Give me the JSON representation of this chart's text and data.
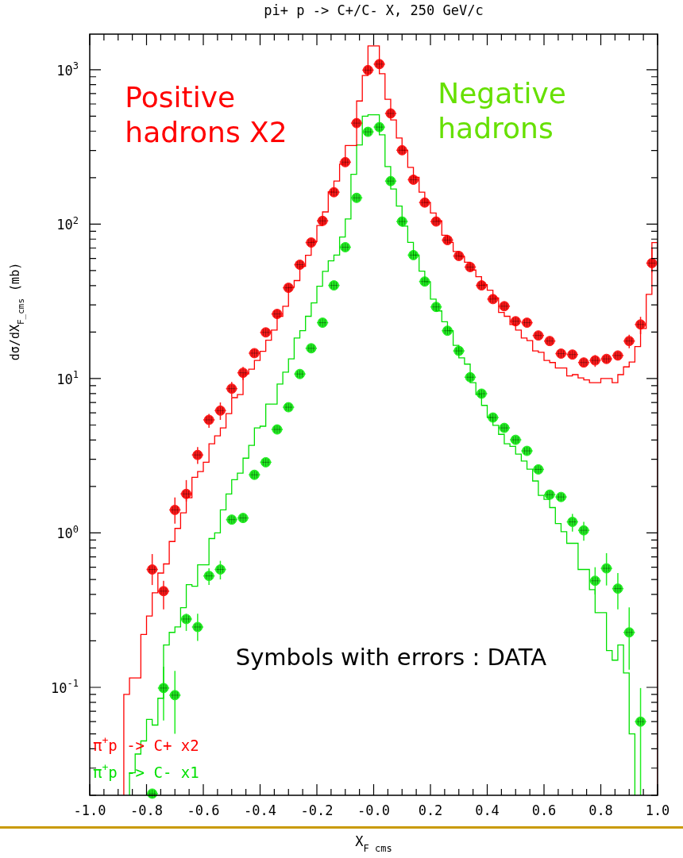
{
  "chart_data": {
    "type": "histogram",
    "title": "pi+ p -> C+/C- X, 250 GeV/c",
    "xlabel": "X$_{F cms}$",
    "ylabel": "dσ/dX$_{F_cms}$ (mb)",
    "log": "y",
    "legend": "bottom left",
    "marker": "circle",
    "xlim": [
      -1,
      1
    ],
    "ylim": [
      0.02,
      1700
    ],
    "xticks": [
      {
        "value": -1,
        "label": "-1.0"
      },
      {
        "value": -0.95,
        "label": null
      },
      {
        "value": -0.9,
        "label": null
      },
      {
        "value": -0.85,
        "label": null
      },
      {
        "value": -0.8,
        "label": "-0.8"
      },
      {
        "value": -0.75,
        "label": null
      },
      {
        "value": -0.7,
        "label": null
      },
      {
        "value": -0.65,
        "label": null
      },
      {
        "value": -0.6,
        "label": "-0.6"
      },
      {
        "value": -0.55,
        "label": null
      },
      {
        "value": -0.5,
        "label": null
      },
      {
        "value": -0.45,
        "label": null
      },
      {
        "value": -0.4,
        "label": "-0.4"
      },
      {
        "value": -0.35,
        "label": null
      },
      {
        "value": -0.3,
        "label": null
      },
      {
        "value": -0.25,
        "label": null
      },
      {
        "value": -0.2,
        "label": "-0.2"
      },
      {
        "value": -0.15,
        "label": null
      },
      {
        "value": -0.1,
        "label": null
      },
      {
        "value": -0.05,
        "label": null
      },
      {
        "value": 0,
        "label": "-0.0"
      },
      {
        "value": 0.05,
        "label": null
      },
      {
        "value": 0.1,
        "label": null
      },
      {
        "value": 0.15,
        "label": null
      },
      {
        "value": 0.2,
        "label": "0.2"
      },
      {
        "value": 0.25,
        "label": null
      },
      {
        "value": 0.3,
        "label": null
      },
      {
        "value": 0.35,
        "label": null
      },
      {
        "value": 0.4,
        "label": "0.4"
      },
      {
        "value": 0.45,
        "label": null
      },
      {
        "value": 0.5,
        "label": null
      },
      {
        "value": 0.55,
        "label": null
      },
      {
        "value": 0.6,
        "label": "0.6"
      },
      {
        "value": 0.65,
        "label": null
      },
      {
        "value": 0.7,
        "label": null
      },
      {
        "value": 0.75,
        "label": null
      },
      {
        "value": 0.8,
        "label": "0.8"
      },
      {
        "value": 0.85,
        "label": null
      },
      {
        "value": 0.9,
        "label": null
      },
      {
        "value": 0.95,
        "label": null
      },
      {
        "value": 1,
        "label": "1.0"
      }
    ],
    "yticks": [
      {
        "value": 0.02,
        "label": null
      },
      {
        "value": 0.03,
        "label": null
      },
      {
        "value": 0.04,
        "label": null
      },
      {
        "value": 0.05,
        "label": null
      },
      {
        "value": 0.06,
        "label": null
      },
      {
        "value": 0.07,
        "label": null
      },
      {
        "value": 0.08,
        "label": null
      },
      {
        "value": 0.09,
        "label": null
      },
      {
        "value": 0.1,
        "label": "10$^{-1}$"
      },
      {
        "value": 0.2,
        "label": null
      },
      {
        "value": 0.3,
        "label": null
      },
      {
        "value": 0.4,
        "label": null
      },
      {
        "value": 0.5,
        "label": null
      },
      {
        "value": 0.6,
        "label": null
      },
      {
        "value": 0.7,
        "label": null
      },
      {
        "value": 0.8,
        "label": null
      },
      {
        "value": 0.9,
        "label": null
      },
      {
        "value": 1,
        "label": "10$^{0}$"
      },
      {
        "value": 2,
        "label": null
      },
      {
        "value": 3,
        "label": null
      },
      {
        "value": 4,
        "label": null
      },
      {
        "value": 5,
        "label": null
      },
      {
        "value": 6,
        "label": null
      },
      {
        "value": 7,
        "label": null
      },
      {
        "value": 8,
        "label": null
      },
      {
        "value": 9,
        "label": null
      },
      {
        "value": 10,
        "label": "10$^{1}$"
      },
      {
        "value": 20,
        "label": null
      },
      {
        "value": 30,
        "label": null
      },
      {
        "value": 40,
        "label": null
      },
      {
        "value": 50,
        "label": null
      },
      {
        "value": 60,
        "label": null
      },
      {
        "value": 70,
        "label": null
      },
      {
        "value": 80,
        "label": null
      },
      {
        "value": 90,
        "label": null
      },
      {
        "value": 100,
        "label": "10$^{2}$"
      },
      {
        "value": 200,
        "label": null
      },
      {
        "value": 300,
        "label": null
      },
      {
        "value": 400,
        "label": null
      },
      {
        "value": 500,
        "label": null
      },
      {
        "value": 600,
        "label": null
      },
      {
        "value": 700,
        "label": null
      },
      {
        "value": 800,
        "label": null
      },
      {
        "value": 900,
        "label": null
      },
      {
        "value": 1000,
        "label": "10$^{3}$"
      }
    ],
    "annotations": [
      "Positive hadrons X2",
      "Negative hadrons",
      "Symbols with errors : DATA"
    ],
    "series": [
      {
        "name": "π$^{+}$p -> C+ x2",
        "type": "histogram",
        "color": "#ff0000",
        "bins": [
          -0.88,
          -0.86,
          -0.84,
          -0.82,
          -0.8,
          -0.78,
          -0.76,
          -0.74,
          -0.72,
          -0.7,
          -0.68,
          -0.66,
          -0.64,
          -0.62,
          -0.6,
          -0.58,
          -0.56,
          -0.54,
          -0.52,
          -0.5,
          -0.48,
          -0.46,
          -0.44,
          -0.42,
          -0.4,
          -0.38,
          -0.36,
          -0.34,
          -0.32,
          -0.3,
          -0.28,
          -0.26,
          -0.24,
          -0.22,
          -0.2,
          -0.18,
          -0.16,
          -0.14,
          -0.12,
          -0.1,
          -0.08,
          -0.06,
          -0.04,
          -0.02,
          0,
          0.02,
          0.04,
          0.06,
          0.08,
          0.1,
          0.12,
          0.14,
          0.16,
          0.18,
          0.2,
          0.22,
          0.24,
          0.26,
          0.28,
          0.3,
          0.32,
          0.34,
          0.36,
          0.38,
          0.4,
          0.42,
          0.44,
          0.46,
          0.48,
          0.5,
          0.52,
          0.54,
          0.56,
          0.58,
          0.6,
          0.62,
          0.64,
          0.66,
          0.68,
          0.7,
          0.72,
          0.74,
          0.76,
          0.78,
          0.8,
          0.82,
          0.84,
          0.86,
          0.88,
          0.9,
          0.92,
          0.94,
          0.96,
          0.98,
          1
        ],
        "values": [
          0.09,
          0.115,
          0.115,
          0.22,
          0.29,
          0.41,
          0.55,
          0.63,
          0.88,
          1.07,
          1.35,
          1.69,
          2.29,
          2.5,
          2.87,
          3.78,
          4.25,
          4.79,
          5.93,
          7.52,
          7.87,
          10.7,
          11.5,
          13.1,
          15,
          17.7,
          20.6,
          25.3,
          29.4,
          39,
          43.1,
          53.3,
          62.9,
          77.2,
          98,
          120,
          162,
          190,
          245,
          323,
          323,
          627,
          918,
          1426,
          1426,
          942,
          643,
          473,
          361,
          301,
          233,
          201,
          161,
          138,
          118,
          105,
          84.8,
          76.1,
          66.5,
          61.5,
          56.7,
          50.4,
          45.7,
          40.6,
          37.3,
          33.3,
          26.8,
          25.3,
          22.4,
          20.6,
          18.3,
          17.6,
          15.1,
          14.8,
          13.1,
          12.7,
          11.7,
          11.7,
          10.4,
          10.6,
          10.1,
          9.8,
          9.4,
          9.4,
          10,
          10,
          9.4,
          10.6,
          11.9,
          12.8,
          16.1,
          21.1,
          35.1,
          76
        ]
      },
      {
        "type": "scatter",
        "color": "#ff1a1a",
        "x": [
          -0.78,
          -0.74,
          -0.7,
          -0.66,
          -0.62,
          -0.58,
          -0.54,
          -0.5,
          -0.46,
          -0.42,
          -0.38,
          -0.34,
          -0.3,
          -0.26,
          -0.22,
          -0.18,
          -0.14,
          -0.1,
          -0.06,
          -0.02,
          0.02,
          0.06,
          0.1,
          0.14,
          0.18,
          0.22,
          0.26,
          0.3,
          0.34,
          0.38,
          0.42,
          0.46,
          0.5,
          0.54,
          0.58,
          0.62,
          0.66,
          0.7,
          0.74,
          0.78,
          0.82,
          0.86,
          0.9,
          0.94,
          0.98
        ],
        "values": [
          0.58,
          0.42,
          1.41,
          1.79,
          3.2,
          5.4,
          6.2,
          8.6,
          10.9,
          14.6,
          19.9,
          26.2,
          38.7,
          54.6,
          76,
          105,
          161,
          252,
          451,
          994,
          1087,
          521,
          301,
          194,
          138,
          104,
          78.8,
          62.2,
          52.7,
          40.1,
          32.7,
          29.4,
          23.5,
          23,
          19,
          17.5,
          14.5,
          14.3,
          12.7,
          13.1,
          13.4,
          14.1,
          17.5,
          22.4,
          55.9
        ],
        "errors": [
          [
            0.46,
            0.73
          ],
          [
            0.32,
            0.49
          ],
          [
            1.15,
            1.7
          ],
          [
            1.6,
            2.2
          ],
          [
            2.8,
            3.6
          ],
          [
            4.8,
            5.9
          ],
          [
            5.4,
            7
          ],
          [
            7.6,
            9.5
          ],
          [
            9.8,
            11.9
          ],
          null,
          null,
          null,
          null,
          null,
          null,
          null,
          null,
          null,
          null,
          null,
          null,
          null,
          null,
          null,
          null,
          null,
          null,
          null,
          null,
          null,
          null,
          null,
          null,
          null,
          null,
          null,
          null,
          null,
          null,
          [
            11.9,
            14.2
          ],
          null,
          null,
          [
            15.7,
            19.2
          ],
          [
            19.4,
            25.1
          ],
          [
            48.6,
            70
          ]
        ],
        "xerrors": [
          0.02,
          0.02,
          0.02,
          0.02,
          0.02,
          0.02,
          0.02,
          0.02,
          0.02,
          0.02,
          0.02,
          0.02,
          0.02,
          0.02,
          0.02,
          0.02,
          0.02,
          0.02,
          0.02,
          0.02,
          0.02,
          0.02,
          0.02,
          0.02,
          0.02,
          0.02,
          0.02,
          0.02,
          0.02,
          0.02,
          0.02,
          0.02,
          0.02,
          0.02,
          0.02,
          0.02,
          0.02,
          0.02,
          0.02,
          0.02,
          0.02,
          0.02,
          0.02,
          0.02,
          0.02
        ]
      },
      {
        "name": "π$^{+}$p -> C- x1",
        "type": "histogram",
        "color": "#00e000",
        "bins": [
          -0.86,
          -0.84,
          -0.82,
          -0.8,
          -0.78,
          -0.76,
          -0.74,
          -0.72,
          -0.7,
          -0.68,
          -0.66,
          -0.64,
          -0.62,
          -0.6,
          -0.58,
          -0.56,
          -0.54,
          -0.52,
          -0.5,
          -0.48,
          -0.46,
          -0.44,
          -0.42,
          -0.4,
          -0.38,
          -0.36,
          -0.34,
          -0.32,
          -0.3,
          -0.28,
          -0.26,
          -0.24,
          -0.22,
          -0.2,
          -0.18,
          -0.16,
          -0.14,
          -0.12,
          -0.1,
          -0.08,
          -0.06,
          -0.04,
          -0.02,
          0,
          0.02,
          0.04,
          0.06,
          0.08,
          0.1,
          0.12,
          0.14,
          0.16,
          0.18,
          0.2,
          0.22,
          0.24,
          0.26,
          0.28,
          0.3,
          0.32,
          0.34,
          0.36,
          0.38,
          0.4,
          0.42,
          0.44,
          0.46,
          0.48,
          0.5,
          0.52,
          0.54,
          0.56,
          0.58,
          0.6,
          0.62,
          0.64,
          0.66,
          0.68,
          0.7,
          0.72,
          0.74,
          0.76,
          0.78,
          0.8,
          0.82,
          0.84,
          0.86,
          0.88,
          0.9,
          0.92
        ],
        "values": [
          0.028,
          0.037,
          0.045,
          0.062,
          0.057,
          0.085,
          0.188,
          0.227,
          0.246,
          0.328,
          0.462,
          0.452,
          0.622,
          0.622,
          0.92,
          1,
          1.41,
          1.79,
          2.21,
          2.44,
          3.05,
          3.69,
          4.79,
          4.91,
          6.83,
          6.83,
          9.2,
          11,
          13.4,
          18.3,
          20.4,
          25.3,
          30.9,
          39.6,
          49.4,
          57.8,
          63,
          82.5,
          108,
          210,
          326,
          500,
          510,
          510,
          379,
          236,
          169,
          131,
          97,
          76.1,
          63,
          49.6,
          42.3,
          32.7,
          27.4,
          23.3,
          20.4,
          16.4,
          13.6,
          12.4,
          9.4,
          7.87,
          6.7,
          5.6,
          4.98,
          4.35,
          3.78,
          3.64,
          3.24,
          2.92,
          2.59,
          2.17,
          1.75,
          1.65,
          1.46,
          1.15,
          1.02,
          0.857,
          0.857,
          0.58,
          0.58,
          0.43,
          0.305,
          0.305,
          0.173,
          0.15,
          0.188,
          0.124,
          0.05
        ]
      },
      {
        "type": "scatter",
        "color": "#22ee22",
        "x": [
          -0.78,
          -0.74,
          -0.7,
          -0.66,
          -0.62,
          -0.58,
          -0.54,
          -0.5,
          -0.46,
          -0.42,
          -0.38,
          -0.34,
          -0.3,
          -0.26,
          -0.22,
          -0.18,
          -0.14,
          -0.1,
          -0.06,
          -0.02,
          0.02,
          0.06,
          0.1,
          0.14,
          0.18,
          0.22,
          0.26,
          0.3,
          0.34,
          0.38,
          0.42,
          0.46,
          0.5,
          0.54,
          0.58,
          0.62,
          0.66,
          0.7,
          0.74,
          0.78,
          0.82,
          0.86,
          0.9,
          0.94
        ],
        "values": [
          0.0205,
          0.099,
          0.089,
          0.277,
          0.246,
          0.527,
          0.58,
          1.22,
          1.25,
          2.38,
          2.87,
          4.68,
          6.52,
          10.7,
          15.7,
          23,
          40.1,
          70.9,
          148,
          396,
          425,
          190,
          104,
          63,
          42.5,
          29.1,
          20.4,
          15.1,
          10.2,
          7.98,
          5.59,
          4.79,
          4.01,
          3.4,
          2.58,
          1.77,
          1.71,
          1.18,
          1.04,
          0.49,
          0.59,
          0.436,
          0.227,
          0.06
        ],
        "errors": [
          null,
          [
            0.061,
            0.136
          ],
          [
            0.05,
            0.128
          ],
          [
            0.232,
            0.3
          ],
          [
            0.2,
            0.3
          ],
          [
            0.46,
            0.59
          ],
          [
            0.5,
            0.66
          ],
          null,
          null,
          null,
          null,
          null,
          null,
          null,
          null,
          null,
          null,
          null,
          null,
          null,
          null,
          null,
          null,
          null,
          null,
          null,
          null,
          null,
          null,
          null,
          null,
          null,
          null,
          null,
          null,
          null,
          null,
          [
            1.02,
            1.33
          ],
          [
            0.89,
            1.18
          ],
          [
            0.4,
            0.6
          ],
          [
            0.457,
            0.74
          ],
          [
            0.32,
            0.55
          ],
          [
            0.13,
            0.33
          ],
          [
            0.02,
            0.099
          ]
        ],
        "xerrors": [
          0.02,
          0.02,
          0.02,
          0.02,
          0.02,
          0.02,
          0.02,
          0.02,
          0.02,
          0.02,
          0.02,
          0.02,
          0.02,
          0.02,
          0.02,
          0.02,
          0.02,
          0.02,
          0.02,
          0.02,
          0.02,
          0.02,
          0.02,
          0.02,
          0.02,
          0.02,
          0.02,
          0.02,
          0.02,
          0.02,
          0.02,
          0.02,
          0.02,
          0.02,
          0.02,
          0.02,
          0.02,
          0.02,
          0.02,
          0.02,
          0.02,
          0.02,
          0.02,
          0.02
        ]
      }
    ]
  }
}
